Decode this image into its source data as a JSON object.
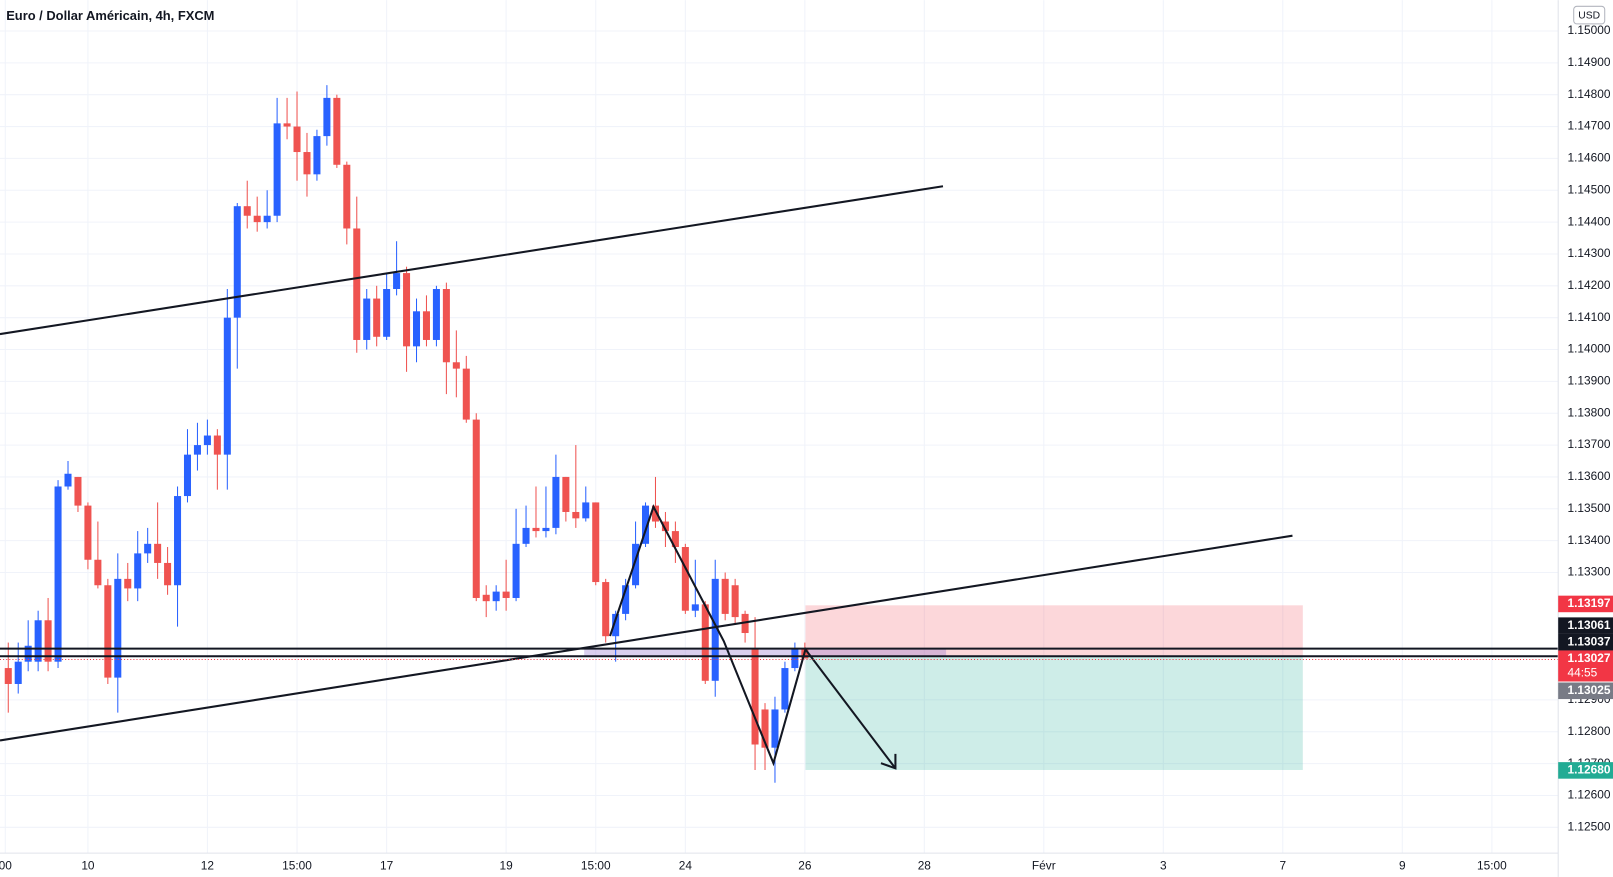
{
  "header": {
    "title": "Euro / Dollar Américain, 4h, FXCM",
    "currency": "USD"
  },
  "chart_data": {
    "type": "candlestick",
    "x": [
      -8,
      -7,
      -6,
      -5,
      -4,
      -3,
      -2,
      -1,
      0,
      1,
      2,
      3,
      4,
      5,
      6,
      7,
      8,
      9,
      10,
      11,
      12,
      13,
      14,
      15,
      16,
      17,
      18,
      19,
      20,
      21,
      22,
      23,
      24,
      25,
      26,
      27,
      28,
      29,
      30,
      31,
      32,
      33,
      34,
      35,
      36,
      37,
      38,
      39,
      40,
      41,
      42,
      43,
      44,
      45,
      46,
      47,
      48,
      49,
      50,
      51,
      52,
      53,
      54,
      55,
      56,
      57,
      58,
      59,
      60,
      61,
      62,
      63,
      64,
      65,
      66,
      67,
      68,
      69,
      70,
      71,
      72
    ],
    "open": [
      1.13,
      1.1295,
      1.1302,
      1.1302,
      1.1315,
      1.1302,
      1.1357,
      1.136,
      1.1351,
      1.1334,
      1.1326,
      1.1297,
      1.1328,
      1.1325,
      1.1336,
      1.1339,
      1.1333,
      1.1326,
      1.1354,
      1.1367,
      1.137,
      1.1373,
      1.1367,
      1.141,
      1.1445,
      1.1442,
      1.144,
      1.1442,
      1.1471,
      1.147,
      1.1462,
      1.1455,
      1.1467,
      1.1479,
      1.1458,
      1.1438,
      1.1403,
      1.1416,
      1.1404,
      1.1419,
      1.1424,
      1.1401,
      1.1412,
      1.1403,
      1.1419,
      1.1396,
      1.1394,
      1.1378,
      1.1323,
      1.1321,
      1.1324,
      1.1322,
      1.1339,
      1.1344,
      1.1343,
      1.1344,
      1.136,
      1.1349,
      1.1347,
      1.1352,
      1.1327,
      1.131,
      1.1317,
      1.1326,
      1.1339,
      1.1351,
      1.1346,
      1.1343,
      1.1338,
      1.1318,
      1.132,
      1.1296,
      1.1328,
      1.1326,
      1.1317,
      1.1306,
      1.1287,
      1.1275,
      1.1287,
      1.13,
      1.1306
    ],
    "high": [
      1.1308,
      1.1308,
      1.1315,
      1.1318,
      1.1322,
      1.1359,
      1.1365,
      1.136,
      1.1352,
      1.1346,
      1.1328,
      1.1336,
      1.1333,
      1.1343,
      1.1344,
      1.1352,
      1.1338,
      1.1357,
      1.1375,
      1.1377,
      1.1378,
      1.1375,
      1.1419,
      1.1446,
      1.1453,
      1.1448,
      1.145,
      1.1479,
      1.1479,
      1.1481,
      1.1468,
      1.1469,
      1.1483,
      1.148,
      1.1459,
      1.1448,
      1.1419,
      1.142,
      1.1424,
      1.1434,
      1.1426,
      1.1416,
      1.1417,
      1.142,
      1.1421,
      1.1406,
      1.1398,
      1.138,
      1.1326,
      1.1326,
      1.1334,
      1.135,
      1.1351,
      1.1357,
      1.1357,
      1.1367,
      1.136,
      1.137,
      1.1357,
      1.1352,
      1.1328,
      1.1318,
      1.1328,
      1.1346,
      1.1352,
      1.136,
      1.1349,
      1.1346,
      1.1339,
      1.1334,
      1.1321,
      1.1334,
      1.133,
      1.1328,
      1.1318,
      1.1316,
      1.1289,
      1.1291,
      1.1302,
      1.1308,
      1.1308
    ],
    "low": [
      1.1286,
      1.1292,
      1.1299,
      1.1299,
      1.1299,
      1.13,
      1.1356,
      1.1349,
      1.1331,
      1.1325,
      1.1295,
      1.1286,
      1.1321,
      1.1321,
      1.1333,
      1.1328,
      1.1323,
      1.1313,
      1.1352,
      1.1362,
      1.1367,
      1.1356,
      1.1356,
      1.1394,
      1.1438,
      1.1437,
      1.1438,
      1.144,
      1.1466,
      1.1453,
      1.1448,
      1.1453,
      1.1464,
      1.1457,
      1.1433,
      1.1399,
      1.14,
      1.1401,
      1.1403,
      1.1417,
      1.1393,
      1.1396,
      1.1401,
      1.1401,
      1.1386,
      1.1385,
      1.1377,
      1.1321,
      1.1316,
      1.1318,
      1.1318,
      1.1321,
      1.1338,
      1.1341,
      1.1341,
      1.1342,
      1.1346,
      1.1344,
      1.1346,
      1.1326,
      1.1308,
      1.1302,
      1.1315,
      1.1325,
      1.1338,
      1.1344,
      1.1338,
      1.1333,
      1.1317,
      1.1316,
      1.1295,
      1.1291,
      1.1315,
      1.1314,
      1.1308,
      1.1268,
      1.1268,
      1.1264,
      1.1286,
      1.1299,
      1.1303
    ],
    "close": [
      1.1295,
      1.1302,
      1.1307,
      1.1315,
      1.1302,
      1.1357,
      1.1361,
      1.1351,
      1.1334,
      1.1326,
      1.1297,
      1.1328,
      1.1325,
      1.1336,
      1.1339,
      1.1333,
      1.1326,
      1.1354,
      1.1367,
      1.137,
      1.1373,
      1.1367,
      1.141,
      1.1445,
      1.1442,
      1.144,
      1.1442,
      1.1471,
      1.147,
      1.1462,
      1.1455,
      1.1467,
      1.1479,
      1.1458,
      1.1438,
      1.1403,
      1.1416,
      1.1404,
      1.1419,
      1.1424,
      1.1401,
      1.1412,
      1.1403,
      1.1419,
      1.1396,
      1.1394,
      1.1378,
      1.1322,
      1.1321,
      1.1324,
      1.1322,
      1.1339,
      1.1344,
      1.1343,
      1.1344,
      1.136,
      1.1349,
      1.1347,
      1.1352,
      1.1327,
      1.131,
      1.1317,
      1.1326,
      1.1339,
      1.1351,
      1.1346,
      1.1343,
      1.1338,
      1.1318,
      1.132,
      1.1296,
      1.1328,
      1.1317,
      1.1316,
      1.1311,
      1.1276,
      1.1275,
      1.1287,
      1.13,
      1.1306,
      1.1303
    ],
    "up_color": "#2962ff",
    "down_color": "#ef5350",
    "xlim": [
      -8.83,
      147.66
    ],
    "ylim": [
      1.12419,
      1.15097
    ],
    "grid": true,
    "xticks": [
      {
        "value": -8.3,
        "label": "00"
      },
      {
        "value": 0,
        "label": "10"
      },
      {
        "value": 12,
        "label": "12"
      },
      {
        "value": 21,
        "label": "15:00"
      },
      {
        "value": 30,
        "label": "17"
      },
      {
        "value": 42,
        "label": "19"
      },
      {
        "value": 51,
        "label": "15:00"
      },
      {
        "value": 60,
        "label": "24"
      },
      {
        "value": 72,
        "label": "26"
      },
      {
        "value": 84,
        "label": "28"
      },
      {
        "value": 96,
        "label": "Févr"
      },
      {
        "value": 108,
        "label": "3"
      },
      {
        "value": 120,
        "label": "7"
      },
      {
        "value": 132,
        "label": "9"
      },
      {
        "value": 141,
        "label": "15:00"
      }
    ],
    "yticks": [
      {
        "value": 1.15,
        "label": "1.15000"
      },
      {
        "value": 1.149,
        "label": "1.14900"
      },
      {
        "value": 1.148,
        "label": "1.14800"
      },
      {
        "value": 1.147,
        "label": "1.14700"
      },
      {
        "value": 1.146,
        "label": "1.14600"
      },
      {
        "value": 1.145,
        "label": "1.14500"
      },
      {
        "value": 1.144,
        "label": "1.14400"
      },
      {
        "value": 1.143,
        "label": "1.14300"
      },
      {
        "value": 1.142,
        "label": "1.14200"
      },
      {
        "value": 1.141,
        "label": "1.14100"
      },
      {
        "value": 1.14,
        "label": "1.14000"
      },
      {
        "value": 1.139,
        "label": "1.13900"
      },
      {
        "value": 1.138,
        "label": "1.13800"
      },
      {
        "value": 1.137,
        "label": "1.13700"
      },
      {
        "value": 1.136,
        "label": "1.13600"
      },
      {
        "value": 1.135,
        "label": "1.13500"
      },
      {
        "value": 1.134,
        "label": "1.13400"
      },
      {
        "value": 1.133,
        "label": "1.13300"
      },
      {
        "value": 1.129,
        "label": "1.12900"
      },
      {
        "value": 1.128,
        "label": "1.12800"
      },
      {
        "value": 1.127,
        "label": "1.12700"
      },
      {
        "value": 1.126,
        "label": "1.12600"
      },
      {
        "value": 1.125,
        "label": "1.12500"
      }
    ],
    "price_tags": [
      {
        "value": 1.13197,
        "label": "1.13197",
        "color": "#f23645"
      },
      {
        "value": 1.13061,
        "label": "1.13061",
        "color": "#131722"
      },
      {
        "value": 1.13037,
        "label": "1.13037",
        "color": "#131722"
      },
      {
        "value": 1.13027,
        "label": "1.13027",
        "color": "#f23645"
      },
      {
        "value": 1.13025,
        "label": "1.13025",
        "color": "#787b86"
      },
      {
        "value": 1.1268,
        "label": "1.12680",
        "color": "#22ab94"
      }
    ],
    "countdown": "44:55"
  }
}
